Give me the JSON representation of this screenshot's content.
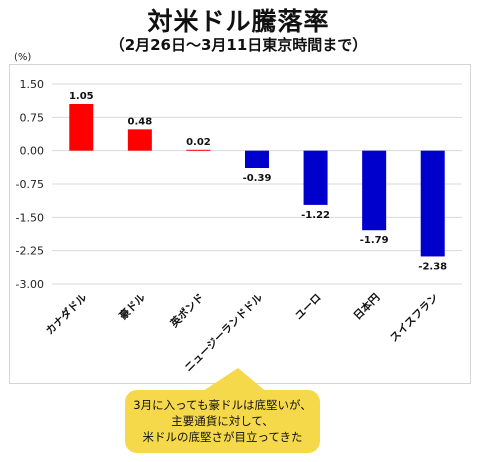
{
  "title": "対米ドル騰落率",
  "subtitle": "（2月26日～3月11日東京時間まで）",
  "chart_data": {
    "type": "bar",
    "unit_label": "(%)",
    "categories": [
      "カナダドル",
      "豪ドル",
      "英ポンド",
      "ニュージーランドドル",
      "ユーロ",
      "日本円",
      "スイスフラン"
    ],
    "values": [
      1.05,
      0.48,
      0.02,
      -0.39,
      -1.22,
      -1.79,
      -2.38
    ],
    "value_labels": [
      "1.05",
      "0.48",
      "0.02",
      "-0.39",
      "-1.22",
      "-1.79",
      "-2.38"
    ],
    "ylim": [
      -3.0,
      1.5
    ],
    "yticks": [
      1.5,
      0.75,
      0.0,
      -0.75,
      -1.5,
      -2.25,
      -3.0
    ],
    "ytick_labels": [
      "1.50",
      "0.75",
      "0.00",
      "-0.75",
      "-1.50",
      "-2.25",
      "-3.00"
    ],
    "grid": true,
    "colors": {
      "positive": "#ff0000",
      "negative": "#0000cc",
      "grid": "#d9d9d9"
    }
  },
  "callout": {
    "lines": [
      "3月に入っても豪ドルは底堅いが、",
      "主要通貨に対して、",
      "米ドルの底堅さが目立ってきた"
    ],
    "color": "#f5d94a"
  }
}
